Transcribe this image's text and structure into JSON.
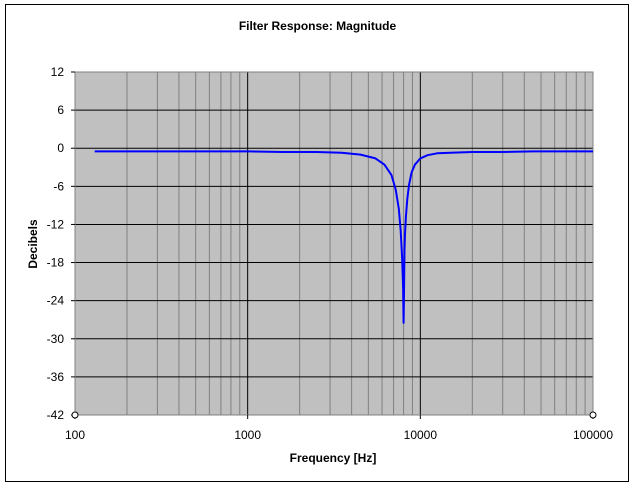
{
  "chart_data": {
    "type": "line",
    "title": "Filter Response: Magnitude",
    "xlabel": "Frequency [Hz]",
    "ylabel": "Decibels",
    "xscale": "log",
    "xlim": [
      100,
      100000
    ],
    "ylim": [
      -42,
      12
    ],
    "xticks": [
      100,
      1000,
      10000,
      100000
    ],
    "xtick_labels": [
      "100",
      "1000",
      "10000",
      "100000"
    ],
    "yticks": [
      12,
      6,
      0,
      -6,
      -12,
      -18,
      -24,
      -30,
      -36,
      -42
    ],
    "ytick_labels": [
      "12",
      "6",
      "0",
      "-6",
      "-12",
      "-18",
      "-24",
      "-30",
      "-36",
      "-42"
    ],
    "grid": true,
    "plot_background": "#c0c0c0",
    "series": [
      {
        "name": "Magnitude",
        "color": "#0000ff",
        "x": [
          130,
          200,
          500,
          1000,
          1600,
          2500,
          3500,
          4500,
          5500,
          6200,
          6800,
          7200,
          7500,
          7700,
          7850,
          7950,
          8000,
          8030,
          8060,
          8100,
          8150,
          8250,
          8400,
          8600,
          8900,
          9300,
          10000,
          11000,
          12500,
          15000,
          20000,
          30000,
          45000,
          60000,
          100000
        ],
        "values": [
          -0.5,
          -0.5,
          -0.5,
          -0.5,
          -0.6,
          -0.6,
          -0.7,
          -1.0,
          -1.6,
          -2.6,
          -4.2,
          -6.5,
          -9.5,
          -13.0,
          -17.5,
          -22.0,
          -27.5,
          -24.0,
          -20.0,
          -16.0,
          -13.5,
          -10.8,
          -8.0,
          -5.8,
          -3.8,
          -2.6,
          -1.6,
          -1.1,
          -0.8,
          -0.7,
          -0.6,
          -0.6,
          -0.5,
          -0.5,
          -0.5
        ]
      }
    ]
  }
}
